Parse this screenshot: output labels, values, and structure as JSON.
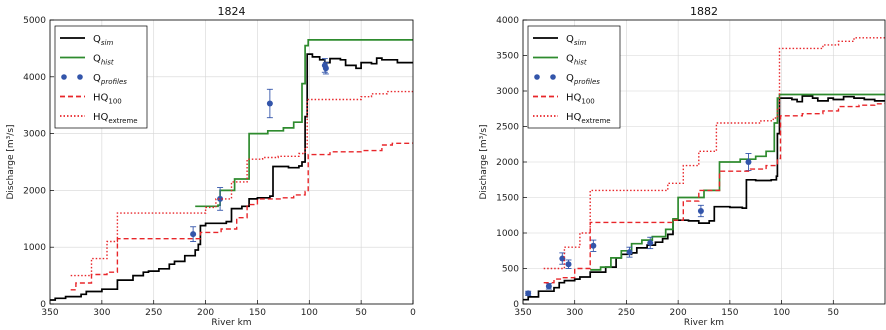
{
  "chart_data": [
    {
      "type": "line",
      "title": "1824",
      "xlabel": "River km",
      "ylabel": "Discharge [m³/s]",
      "xlim": [
        350,
        0
      ],
      "ylim": [
        0,
        5000
      ],
      "xticks": [
        350,
        300,
        250,
        200,
        150,
        100,
        50,
        0
      ],
      "yticks": [
        0,
        1000,
        2000,
        3000,
        4000,
        5000
      ],
      "grid": true,
      "legend_position": "top-left",
      "series": [
        {
          "name": "Q",
          "name_sub": "sim",
          "color": "#000000",
          "style": "solid",
          "step": true,
          "points": [
            [
              350,
              70
            ],
            [
              345,
              100
            ],
            [
              335,
              130
            ],
            [
              320,
              170
            ],
            [
              315,
              220
            ],
            [
              300,
              260
            ],
            [
              285,
              420
            ],
            [
              270,
              500
            ],
            [
              260,
              560
            ],
            [
              255,
              580
            ],
            [
              245,
              620
            ],
            [
              235,
              700
            ],
            [
              230,
              750
            ],
            [
              220,
              850
            ],
            [
              210,
              950
            ],
            [
              207,
              1050
            ],
            [
              205,
              1380
            ],
            [
              200,
              1420
            ],
            [
              190,
              1420
            ],
            [
              180,
              1450
            ],
            [
              175,
              1680
            ],
            [
              165,
              1720
            ],
            [
              158,
              1850
            ],
            [
              150,
              1870
            ],
            [
              138,
              1900
            ],
            [
              135,
              2420
            ],
            [
              120,
              2400
            ],
            [
              110,
              2430
            ],
            [
              107,
              2500
            ],
            [
              104,
              3300
            ],
            [
              102,
              4400
            ],
            [
              97,
              4350
            ],
            [
              90,
              4300
            ],
            [
              85,
              4250
            ],
            [
              80,
              4320
            ],
            [
              70,
              4300
            ],
            [
              65,
              4200
            ],
            [
              55,
              4150
            ],
            [
              50,
              4250
            ],
            [
              40,
              4230
            ],
            [
              35,
              4330
            ],
            [
              30,
              4300
            ],
            [
              15,
              4250
            ],
            [
              0,
              4250
            ]
          ]
        },
        {
          "name": "Q",
          "name_sub": "hist",
          "color": "#2e8b2e",
          "style": "solid",
          "step": true,
          "points": [
            [
              210,
              1720
            ],
            [
              188,
              1740
            ],
            [
              186,
              2000
            ],
            [
              172,
              2200
            ],
            [
              158,
              3000
            ],
            [
              140,
              3050
            ],
            [
              125,
              3100
            ],
            [
              115,
              3200
            ],
            [
              107,
              3880
            ],
            [
              104,
              4550
            ],
            [
              101,
              4650
            ],
            [
              0,
              4650
            ]
          ]
        },
        {
          "name": "Q",
          "name_sub": "profiles",
          "color": "#3355aa",
          "style": "points",
          "points": [
            [
              212,
              1230
            ],
            [
              186,
              1850
            ],
            [
              138,
              3530
            ],
            [
              85,
              4200
            ],
            [
              84,
              4150
            ]
          ],
          "errors": [
            130,
            200,
            250,
            120,
            100
          ]
        },
        {
          "name": "HQ",
          "name_sub": "100",
          "color": "#e8262a",
          "style": "dashed",
          "step": true,
          "points": [
            [
              330,
              250
            ],
            [
              325,
              370
            ],
            [
              310,
              520
            ],
            [
              295,
              560
            ],
            [
              285,
              1150
            ],
            [
              215,
              1150
            ],
            [
              205,
              1260
            ],
            [
              185,
              1320
            ],
            [
              170,
              1520
            ],
            [
              160,
              1750
            ],
            [
              150,
              1850
            ],
            [
              130,
              1850
            ],
            [
              125,
              1870
            ],
            [
              115,
              1920
            ],
            [
              104,
              1980
            ],
            [
              101,
              2630
            ],
            [
              80,
              2680
            ],
            [
              50,
              2700
            ],
            [
              30,
              2800
            ],
            [
              20,
              2830
            ],
            [
              0,
              2850
            ]
          ]
        },
        {
          "name": "HQ",
          "name_sub": "extreme",
          "color": "#e8262a",
          "style": "dotted",
          "step": true,
          "points": [
            [
              330,
              500
            ],
            [
              310,
              800
            ],
            [
              295,
              1100
            ],
            [
              285,
              1600
            ],
            [
              210,
              1600
            ],
            [
              200,
              1700
            ],
            [
              190,
              1850
            ],
            [
              175,
              2150
            ],
            [
              160,
              2550
            ],
            [
              145,
              2580
            ],
            [
              130,
              2600
            ],
            [
              110,
              2650
            ],
            [
              104,
              2760
            ],
            [
              102,
              3600
            ],
            [
              80,
              3600
            ],
            [
              50,
              3650
            ],
            [
              40,
              3700
            ],
            [
              25,
              3740
            ],
            [
              0,
              3750
            ]
          ]
        }
      ]
    },
    {
      "type": "line",
      "title": "1882",
      "xlabel": "River km",
      "ylabel": "Discharge [m³/s]",
      "xlim": [
        350,
        0
      ],
      "ylim": [
        0,
        4000
      ],
      "xticks": [
        350,
        300,
        250,
        200,
        150,
        100,
        50
      ],
      "yticks": [
        0,
        500,
        1000,
        1500,
        2000,
        2500,
        3000,
        3500,
        4000
      ],
      "grid": true,
      "legend_position": "top-left",
      "series": [
        {
          "name": "Q",
          "name_sub": "sim",
          "color": "#000000",
          "style": "solid",
          "step": true,
          "points": [
            [
              350,
              60
            ],
            [
              345,
              100
            ],
            [
              335,
              180
            ],
            [
              320,
              230
            ],
            [
              315,
              300
            ],
            [
              310,
              330
            ],
            [
              300,
              350
            ],
            [
              295,
              380
            ],
            [
              285,
              450
            ],
            [
              270,
              520
            ],
            [
              260,
              650
            ],
            [
              255,
              700
            ],
            [
              245,
              720
            ],
            [
              240,
              790
            ],
            [
              230,
              830
            ],
            [
              222,
              870
            ],
            [
              215,
              920
            ],
            [
              210,
              980
            ],
            [
              205,
              1180
            ],
            [
              190,
              1170
            ],
            [
              180,
              1140
            ],
            [
              170,
              1170
            ],
            [
              165,
              1370
            ],
            [
              150,
              1360
            ],
            [
              138,
              1350
            ],
            [
              134,
              1750
            ],
            [
              125,
              1740
            ],
            [
              110,
              1750
            ],
            [
              105,
              1800
            ],
            [
              104,
              2400
            ],
            [
              102,
              2900
            ],
            [
              90,
              2880
            ],
            [
              85,
              2850
            ],
            [
              80,
              2930
            ],
            [
              70,
              2900
            ],
            [
              65,
              2860
            ],
            [
              55,
              2900
            ],
            [
              50,
              2880
            ],
            [
              40,
              2920
            ],
            [
              30,
              2900
            ],
            [
              20,
              2880
            ],
            [
              10,
              2860
            ],
            [
              0,
              2860
            ]
          ]
        },
        {
          "name": "Q",
          "name_sub": "hist",
          "color": "#2e8b2e",
          "style": "solid",
          "step": true,
          "points": [
            [
              285,
              480
            ],
            [
              275,
              520
            ],
            [
              265,
              650
            ],
            [
              255,
              750
            ],
            [
              245,
              850
            ],
            [
              235,
              900
            ],
            [
              225,
              950
            ],
            [
              212,
              1050
            ],
            [
              205,
              1200
            ],
            [
              200,
              1500
            ],
            [
              185,
              1500
            ],
            [
              175,
              1600
            ],
            [
              160,
              2000
            ],
            [
              140,
              2040
            ],
            [
              125,
              2080
            ],
            [
              115,
              2150
            ],
            [
              107,
              2550
            ],
            [
              104,
              2900
            ],
            [
              102,
              2950
            ],
            [
              0,
              2950
            ]
          ]
        },
        {
          "name": "Q",
          "name_sub": "profiles",
          "color": "#3355aa",
          "style": "points",
          "points": [
            [
              345,
              150
            ],
            [
              325,
              250
            ],
            [
              312,
              640
            ],
            [
              306,
              560
            ],
            [
              282,
              820
            ],
            [
              247,
              730
            ],
            [
              227,
              860
            ],
            [
              178,
              1310
            ],
            [
              132,
              2000
            ]
          ],
          "errors": [
            30,
            40,
            80,
            60,
            80,
            70,
            80,
            80,
            120
          ]
        },
        {
          "name": "HQ",
          "name_sub": "100",
          "color": "#e8262a",
          "style": "dashed",
          "step": true,
          "points": [
            [
              330,
              300
            ],
            [
              320,
              350
            ],
            [
              312,
              370
            ],
            [
              300,
              500
            ],
            [
              285,
              1150
            ],
            [
              230,
              1150
            ],
            [
              205,
              1180
            ],
            [
              195,
              1450
            ],
            [
              180,
              1600
            ],
            [
              160,
              1870
            ],
            [
              140,
              1870
            ],
            [
              130,
              1900
            ],
            [
              115,
              1950
            ],
            [
              104,
              2050
            ],
            [
              101,
              2650
            ],
            [
              80,
              2680
            ],
            [
              60,
              2720
            ],
            [
              45,
              2780
            ],
            [
              25,
              2800
            ],
            [
              10,
              2820
            ],
            [
              0,
              2830
            ]
          ]
        },
        {
          "name": "HQ",
          "name_sub": "extreme",
          "color": "#e8262a",
          "style": "dotted",
          "step": true,
          "points": [
            [
              330,
              500
            ],
            [
              310,
              800
            ],
            [
              295,
              1000
            ],
            [
              285,
              1600
            ],
            [
              220,
              1600
            ],
            [
              210,
              1700
            ],
            [
              195,
              1950
            ],
            [
              180,
              2150
            ],
            [
              163,
              2550
            ],
            [
              140,
              2550
            ],
            [
              120,
              2580
            ],
            [
              108,
              2620
            ],
            [
              104,
              2760
            ],
            [
              102,
              3600
            ],
            [
              80,
              3600
            ],
            [
              60,
              3650
            ],
            [
              45,
              3700
            ],
            [
              30,
              3750
            ],
            [
              0,
              3750
            ]
          ]
        }
      ]
    }
  ]
}
